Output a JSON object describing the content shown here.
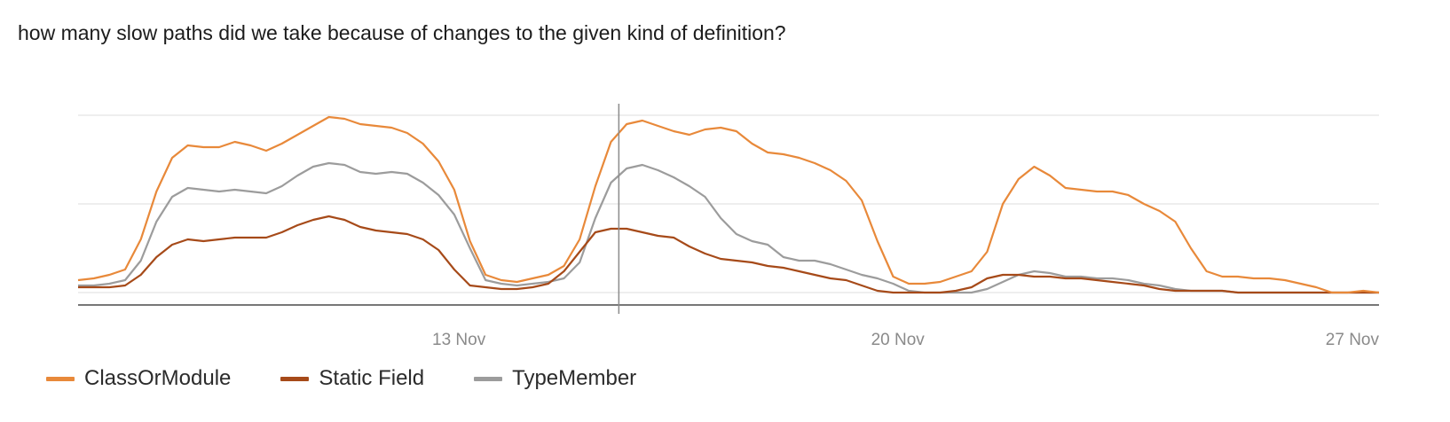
{
  "title": "how many slow paths did we take because of changes to the given kind of definition?",
  "chart_data": {
    "type": "line",
    "title": "how many slow paths did we take because of changes to the given kind of definition?",
    "xlabel": "",
    "ylabel": "",
    "x_domain": [
      0,
      83
    ],
    "x_ticks": [
      {
        "label": "13 Nov",
        "x": 26
      },
      {
        "label": "20 Nov",
        "x": 54
      },
      {
        "label": "27 Nov",
        "x": 83
      }
    ],
    "ylim": [
      0,
      100
    ],
    "grid_values": [
      0,
      50,
      100
    ],
    "grid": true,
    "y_tick_labels_shown": false,
    "cursor_x": 34.5,
    "legend_position": "bottom-left",
    "series": [
      {
        "name": "ClassOrModule",
        "color": "#e8893a",
        "values": [
          7,
          8,
          10,
          13,
          30,
          57,
          76,
          83,
          82,
          82,
          85,
          83,
          80,
          84,
          89,
          94,
          99,
          98,
          95,
          94,
          93,
          90,
          84,
          74,
          58,
          29,
          10,
          7,
          6,
          8,
          10,
          15,
          30,
          60,
          85,
          95,
          97,
          94,
          91,
          89,
          92,
          93,
          91,
          84,
          79,
          78,
          76,
          73,
          69,
          63,
          52,
          29,
          9,
          5,
          5,
          6,
          9,
          12,
          23,
          50,
          64,
          71,
          66,
          59,
          58,
          57,
          57,
          55,
          50,
          46,
          40,
          25,
          12,
          9,
          9,
          8,
          8,
          7,
          5,
          3,
          0,
          0,
          1,
          0
        ]
      },
      {
        "name": "Static Field",
        "color": "#a64a19",
        "values": [
          3,
          3,
          3,
          4,
          10,
          20,
          27,
          30,
          29,
          30,
          31,
          31,
          31,
          34,
          38,
          41,
          43,
          41,
          37,
          35,
          34,
          33,
          30,
          24,
          13,
          4,
          3,
          2,
          2,
          3,
          5,
          12,
          23,
          34,
          36,
          36,
          34,
          32,
          31,
          26,
          22,
          19,
          18,
          17,
          15,
          14,
          12,
          10,
          8,
          7,
          4,
          1,
          0,
          0,
          0,
          0,
          1,
          3,
          8,
          10,
          10,
          9,
          9,
          8,
          8,
          7,
          6,
          5,
          4,
          2,
          1,
          1,
          1,
          1,
          0,
          0,
          0,
          0,
          0,
          0,
          0,
          0,
          0,
          0
        ]
      },
      {
        "name": "TypeMember",
        "color": "#9c9c9c",
        "values": [
          4,
          4,
          5,
          7,
          18,
          40,
          54,
          59,
          58,
          57,
          58,
          57,
          56,
          60,
          66,
          71,
          73,
          72,
          68,
          67,
          68,
          67,
          62,
          55,
          44,
          25,
          7,
          5,
          4,
          5,
          6,
          8,
          17,
          42,
          62,
          70,
          72,
          69,
          65,
          60,
          54,
          42,
          33,
          29,
          27,
          20,
          18,
          18,
          16,
          13,
          10,
          8,
          5,
          1,
          0,
          0,
          0,
          0,
          2,
          6,
          10,
          12,
          11,
          9,
          9,
          8,
          8,
          7,
          5,
          4,
          2,
          1,
          1,
          1,
          0,
          0,
          0,
          0,
          0,
          0,
          0,
          0,
          0,
          0
        ]
      }
    ]
  }
}
